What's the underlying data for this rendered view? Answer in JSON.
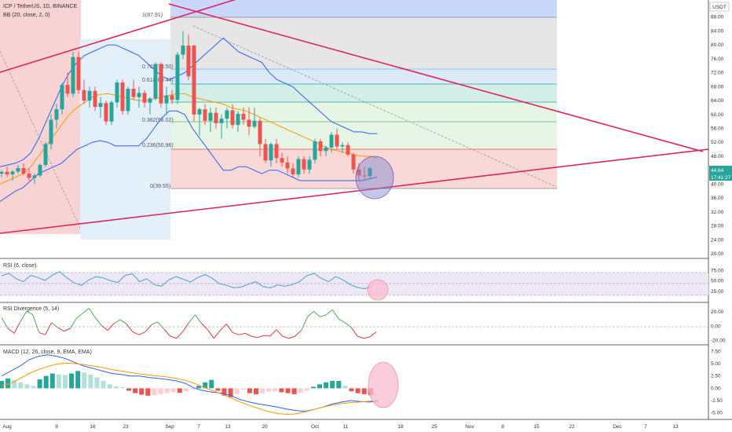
{
  "header": {
    "symbol_line": "ICP / TetherUS, 1D, BINANCE",
    "bb_line": "BB (20, close, 2, 0)",
    "currency": "USDT",
    "price_tag": "44.64",
    "timer_tag": "17:41:27"
  },
  "panes": {
    "rsi_title": "RSI (6, close)",
    "rsi_div_title": "RSI Divergence (5, 14)",
    "macd_title": "MACD (12, 26, close, 9, EMA, EMA)"
  },
  "fib_labels": [
    "1(87.91)",
    "0.702(73.50)",
    "0.618(69.44)",
    "0.382(58.02)",
    "0.236(50.96)",
    "0(39.55)"
  ],
  "x_labels": [
    "Aug",
    "9",
    "16",
    "23",
    "Sep",
    "7",
    "13",
    "20",
    "Oct",
    "11",
    "18",
    "25",
    "Nov",
    "8",
    "15",
    "22",
    "Dec",
    "7",
    "13"
  ],
  "main_ticks": [
    "88.00",
    "84.00",
    "80.00",
    "76.00",
    "72.00",
    "68.00",
    "64.00",
    "60.00",
    "56.00",
    "52.00",
    "48.00",
    "40.00",
    "36.00",
    "32.00",
    "28.00",
    "24.00",
    "20.00"
  ],
  "rsi_ticks": [
    "75.00",
    "50.00",
    "25.00"
  ],
  "div_ticks": [
    "20.00",
    "0.00",
    "-20.00"
  ],
  "macd_ticks": [
    "7.50",
    "5.00",
    "2.50",
    "0.00",
    "-2.50",
    "-5.00"
  ],
  "colors": {
    "up": "#26a69a",
    "down": "#ef5350",
    "trendline": "#e0245e",
    "bb": "#2962ff",
    "basis": "#ff9800",
    "rsi": "#4aa3c9",
    "macd_line": "#2962ff",
    "signal_line": "#ff9800"
  },
  "chart_data": {
    "type": "candlestick",
    "series_name": "ICP / TetherUS",
    "price": [
      [
        43,
        44,
        42,
        43.5
      ],
      [
        43.5,
        45,
        42,
        42.8
      ],
      [
        42.8,
        44,
        41,
        43.6
      ],
      [
        43.6,
        45.5,
        43,
        44.6
      ],
      [
        44.6,
        46,
        42.5,
        43
      ],
      [
        43,
        44.5,
        41,
        41.8
      ],
      [
        41.8,
        43,
        40,
        42.5
      ],
      [
        42.5,
        46,
        42,
        45.5
      ],
      [
        45.5,
        52,
        45,
        51.5
      ],
      [
        51.5,
        60,
        50,
        58.5
      ],
      [
        58.5,
        63,
        56,
        61.5
      ],
      [
        61.5,
        69,
        60,
        68.5
      ],
      [
        68.5,
        72,
        65,
        66
      ],
      [
        66,
        78,
        65,
        76.5
      ],
      [
        76.5,
        78,
        66,
        67
      ],
      [
        67,
        70,
        63,
        64
      ],
      [
        64,
        68,
        62,
        66.8
      ],
      [
        66.8,
        68,
        61,
        62.2
      ],
      [
        62.2,
        65,
        59,
        63.3
      ],
      [
        63.3,
        64,
        57,
        58
      ],
      [
        58,
        64,
        57,
        63.5
      ],
      [
        63.5,
        70,
        62,
        69.2
      ],
      [
        69.2,
        70,
        60,
        61
      ],
      [
        61,
        68,
        60,
        67.4
      ],
      [
        67.4,
        70,
        64,
        65
      ],
      [
        65,
        68,
        62,
        66.2
      ],
      [
        66.2,
        67,
        62,
        63.4
      ],
      [
        63.4,
        65,
        60,
        64.6
      ],
      [
        64.6,
        75,
        64,
        74.5
      ],
      [
        74.5,
        75,
        62,
        63.2
      ],
      [
        63.2,
        68,
        60,
        65.5
      ],
      [
        65.5,
        67,
        63,
        64.2
      ],
      [
        64.2,
        78,
        63,
        77.2
      ],
      [
        77.2,
        84,
        76,
        79.8
      ],
      [
        79.8,
        83,
        70,
        71
      ],
      [
        79.8,
        80,
        58,
        60
      ],
      [
        60,
        62,
        54,
        61.5
      ],
      [
        61.5,
        63,
        57,
        58.2
      ],
      [
        58.2,
        62,
        55,
        60.5
      ],
      [
        60.5,
        62,
        56,
        57.5
      ],
      [
        57.5,
        60,
        53,
        58.8
      ],
      [
        58.8,
        62,
        56,
        61.2
      ],
      [
        61.2,
        63,
        56,
        57
      ],
      [
        57,
        61,
        55,
        60.2
      ],
      [
        60.2,
        62,
        57,
        58.5
      ],
      [
        58.5,
        62,
        54,
        56.5
      ],
      [
        56.5,
        62,
        56,
        58.2
      ],
      [
        58.2,
        59,
        48,
        51.5
      ],
      [
        51.5,
        53,
        46,
        46.8
      ],
      [
        46.8,
        52,
        45,
        51.5
      ],
      [
        51.5,
        53,
        46,
        47.5
      ],
      [
        47.5,
        49,
        45,
        46.2
      ],
      [
        46.2,
        48,
        43,
        44.5
      ],
      [
        44.5,
        46,
        42,
        42.8
      ],
      [
        42.8,
        48,
        42,
        47.2
      ],
      [
        47.2,
        48,
        43,
        44.2
      ],
      [
        44.2,
        48,
        43,
        47
      ],
      [
        47,
        53,
        46,
        52.3
      ],
      [
        52.3,
        53,
        48,
        49.5
      ],
      [
        49.5,
        51,
        48,
        50.5
      ],
      [
        50.5,
        55,
        49,
        54.2
      ],
      [
        54.2,
        56,
        50,
        50.8
      ],
      [
        50.8,
        52,
        49,
        51.2
      ],
      [
        51.2,
        52,
        48,
        48.5
      ],
      [
        48.5,
        49,
        43,
        44.2
      ],
      [
        44.2,
        46,
        41,
        42.5
      ],
      [
        42.5,
        45,
        41,
        42.3
      ],
      [
        42.3,
        45,
        41.5,
        44.6
      ]
    ],
    "bollinger": {
      "upper": [
        45,
        45.5,
        46,
        47,
        49,
        53,
        58,
        63,
        68,
        72,
        75,
        77,
        78,
        79,
        80,
        80,
        79,
        78,
        77,
        75,
        73,
        71,
        70,
        71,
        72,
        74,
        76,
        78,
        80,
        82,
        80,
        78,
        77,
        76,
        75,
        72,
        70,
        69,
        68,
        66,
        64,
        62,
        60,
        58,
        57,
        56,
        55,
        55,
        54.5,
        54.5
      ],
      "basis": [
        40,
        41,
        42,
        43,
        45,
        48,
        51,
        54,
        57,
        60,
        62,
        63.5,
        65,
        65.8,
        66,
        65.5,
        65,
        64.5,
        64,
        64,
        64.5,
        65,
        65.5,
        66,
        66,
        65,
        64.5,
        64,
        63.5,
        63,
        62,
        61.5,
        61,
        60,
        59,
        58,
        57,
        56,
        55,
        54,
        53,
        52,
        51,
        50,
        49.5,
        49,
        48.5,
        48,
        48,
        47.5
      ],
      "lower": [
        35,
        36.5,
        38,
        39,
        41,
        43,
        44,
        45,
        46,
        48,
        50,
        51,
        52,
        52.5,
        52,
        51,
        51,
        51,
        51,
        53,
        56,
        59,
        61,
        61,
        60,
        56,
        53,
        50,
        47,
        44,
        44,
        45,
        45,
        44,
        43,
        44,
        44,
        43,
        42,
        41,
        41,
        41,
        41,
        41,
        41,
        41,
        41,
        41,
        41.5,
        42
      ]
    },
    "fibonacci": {
      "levels": [
        1,
        0.702,
        0.618,
        0.382,
        0.236,
        0
      ],
      "prices": [
        87.91,
        73.5,
        69.44,
        58.02,
        50.96,
        39.55
      ]
    },
    "rsi": {
      "values": [
        62,
        68,
        55,
        48,
        63,
        58,
        51,
        64,
        72,
        57,
        45,
        39,
        52,
        60,
        57,
        50,
        46,
        63,
        67,
        48,
        55,
        41,
        37,
        52,
        60,
        54,
        47,
        58,
        65,
        56,
        43,
        39,
        33,
        35,
        42,
        48,
        36,
        33,
        40,
        37,
        41,
        48,
        62,
        68,
        56,
        48,
        60,
        52,
        41,
        34,
        31,
        38
      ],
      "overbought": 70,
      "oversold": 30
    },
    "rsi_divergence": {
      "values": [
        12,
        -3,
        -10,
        6,
        21,
        16,
        -9,
        -12,
        5,
        -2,
        -7,
        -3,
        11,
        18,
        25,
        12,
        1,
        -6,
        4,
        9,
        3,
        -8,
        -12,
        -8,
        2,
        6,
        -4,
        -14,
        -17,
        -8,
        5,
        16,
        4,
        -5,
        -17,
        -6,
        3,
        -9,
        -12,
        -10,
        -14,
        -16,
        -13,
        -14,
        -5,
        -14,
        -17,
        -14,
        -6,
        13,
        21,
        13,
        16,
        23,
        10,
        5,
        -2,
        -14,
        -17,
        -15,
        -8
      ],
      "zero_line": 0
    },
    "macd": {
      "histogram": [
        1.5,
        2.0,
        1.6,
        1.2,
        0.8,
        0.5,
        1.8,
        2.5,
        3.0,
        2.8,
        2.7,
        3.0,
        3.5,
        3.2,
        2.8,
        2.2,
        1.5,
        0.8,
        0.4,
        0.2,
        -0.5,
        -1.0,
        -1.3,
        -1.5,
        -1.4,
        -1.2,
        -1.0,
        -0.8,
        -0.9,
        -0.6,
        -0.3,
        0.5,
        1.2,
        1.7,
        -0.5,
        -1.5,
        -1.8,
        -1.2,
        -0.3,
        -1.0,
        -1.2,
        -1.0,
        -0.7,
        -0.6,
        -0.8,
        -1.0,
        -1.2,
        -0.9,
        -0.5,
        0.3,
        0.8,
        1.2,
        1.5,
        1.5,
        0.5,
        -0.6,
        -1.0,
        -1.2,
        -1.4
      ],
      "macd_line": [
        2.5,
        3.5,
        4.5,
        5.8,
        6.5,
        6.8,
        6.5,
        6.0,
        5.2,
        4.5,
        4.0,
        3.5,
        3.0,
        2.8,
        2.5,
        2.5,
        2.2,
        2.0,
        1.8,
        1.5,
        1.0,
        0.0,
        -0.5,
        -0.8,
        -1.0,
        -1.5,
        -2.3,
        -2.8,
        -3.2,
        -3.5,
        -3.8,
        -4.2,
        -4.5,
        -4.7,
        -4.3,
        -3.8,
        -3.2,
        -2.8,
        -2.5,
        -2.7,
        -2.8,
        -2.6
      ],
      "signal_line": [
        0.5,
        1.0,
        2.0,
        3.0,
        3.8,
        4.4,
        4.9,
        5.1,
        5.0,
        4.8,
        4.5,
        4.2,
        3.8,
        3.5,
        3.2,
        2.9,
        2.7,
        2.5,
        2.3,
        2.0,
        1.6,
        1.0,
        0.2,
        -0.5,
        -1.2,
        -2.0,
        -2.8,
        -3.5,
        -4.1,
        -4.7,
        -5.1,
        -5.3,
        -5.2,
        -4.8,
        -4.3,
        -3.8,
        -3.4,
        -3.1,
        -2.9,
        -2.8,
        -2.6,
        -2.4
      ]
    },
    "ranges": {
      "price": [
        20,
        92
      ],
      "rsi": [
        0,
        100
      ],
      "rsi_divergence": [
        -25,
        30
      ],
      "macd": [
        -6,
        8.5
      ]
    }
  }
}
